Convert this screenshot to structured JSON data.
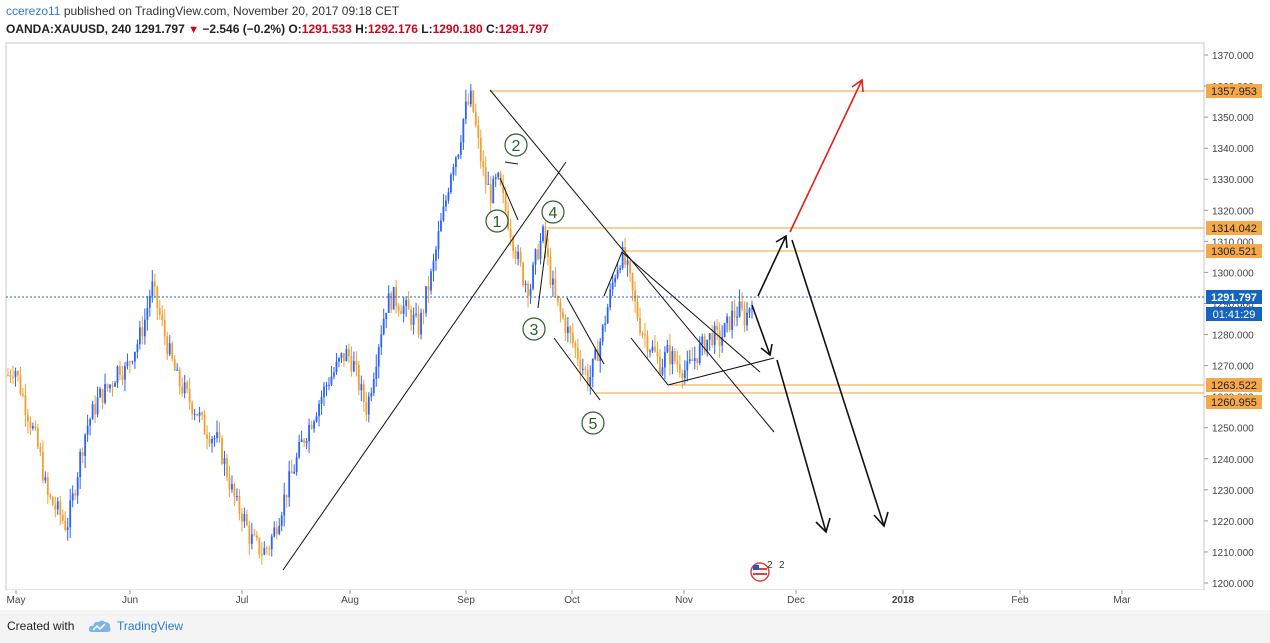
{
  "header": {
    "author": "ccerezo11",
    "published_text": " published on TradingView.com, November 20, 2017 09:18 CET",
    "symbol": "OANDA:XAUUSD, 240",
    "last": "1291.797",
    "change": "−2.546 (−0.2%)",
    "o_label": "O:",
    "o_value": "1291.533",
    "h_label": "H:",
    "h_value": "1292.176",
    "l_label": "L:",
    "l_value": "1290.180",
    "c_label": "C:",
    "c_value": "1291.797"
  },
  "footer": {
    "created_with": "Created with",
    "brand": "TradingView"
  },
  "colors": {
    "up": "#2962ff",
    "down": "#f0a030",
    "level": "#f0a030",
    "price_line": "#1565c0",
    "target_arrow": "#e0201c"
  },
  "chart_data": {
    "type": "candlestick",
    "x_axis": [
      "May",
      "Jun",
      "Jul",
      "Aug",
      "Sep",
      "Oct",
      "Nov",
      "Dec",
      "2018",
      "Feb",
      "Mar"
    ],
    "y_axis": [
      "1370.000",
      "1360.000",
      "1350.000",
      "1340.000",
      "1330.000",
      "1320.000",
      "1310.000",
      "1300.000",
      "1290.000",
      "1280.000",
      "1270.000",
      "1260.000",
      "1250.000",
      "1240.000",
      "1230.000",
      "1220.000",
      "1210.000",
      "1200.000"
    ],
    "ylim": [
      1198,
      1372
    ],
    "levels": [
      "1357.953",
      "1314.042",
      "1306.521",
      "1263.522",
      "1260.955"
    ],
    "current_price": "1291.797",
    "countdown": "01:41:29",
    "wave_labels": [
      "1",
      "2",
      "3",
      "4",
      "5"
    ],
    "events_count": "2",
    "price_path": [
      1267,
      1270,
      1262,
      1255,
      1248,
      1240,
      1228,
      1225,
      1222,
      1218,
      1228,
      1240,
      1250,
      1255,
      1260,
      1262,
      1265,
      1270,
      1268,
      1274,
      1278,
      1285,
      1296,
      1288,
      1280,
      1272,
      1265,
      1262,
      1258,
      1255,
      1250,
      1248,
      1246,
      1240,
      1232,
      1225,
      1222,
      1215,
      1212,
      1210,
      1212,
      1218,
      1225,
      1232,
      1238,
      1245,
      1250,
      1255,
      1260,
      1265,
      1268,
      1272,
      1274,
      1270,
      1262,
      1256,
      1268,
      1280,
      1290,
      1292,
      1290,
      1288,
      1285,
      1282,
      1292,
      1300,
      1312,
      1322,
      1335,
      1340,
      1352,
      1356,
      1342,
      1330,
      1325,
      1330,
      1322,
      1314,
      1305,
      1298,
      1295,
      1306,
      1312,
      1300,
      1290,
      1285,
      1280,
      1275,
      1270,
      1265,
      1272,
      1280,
      1290,
      1300,
      1306,
      1300,
      1290,
      1282,
      1278,
      1274,
      1270,
      1274,
      1272,
      1270,
      1268,
      1272,
      1275,
      1278,
      1280,
      1278,
      1282,
      1286,
      1288,
      1285,
      1292
    ]
  }
}
